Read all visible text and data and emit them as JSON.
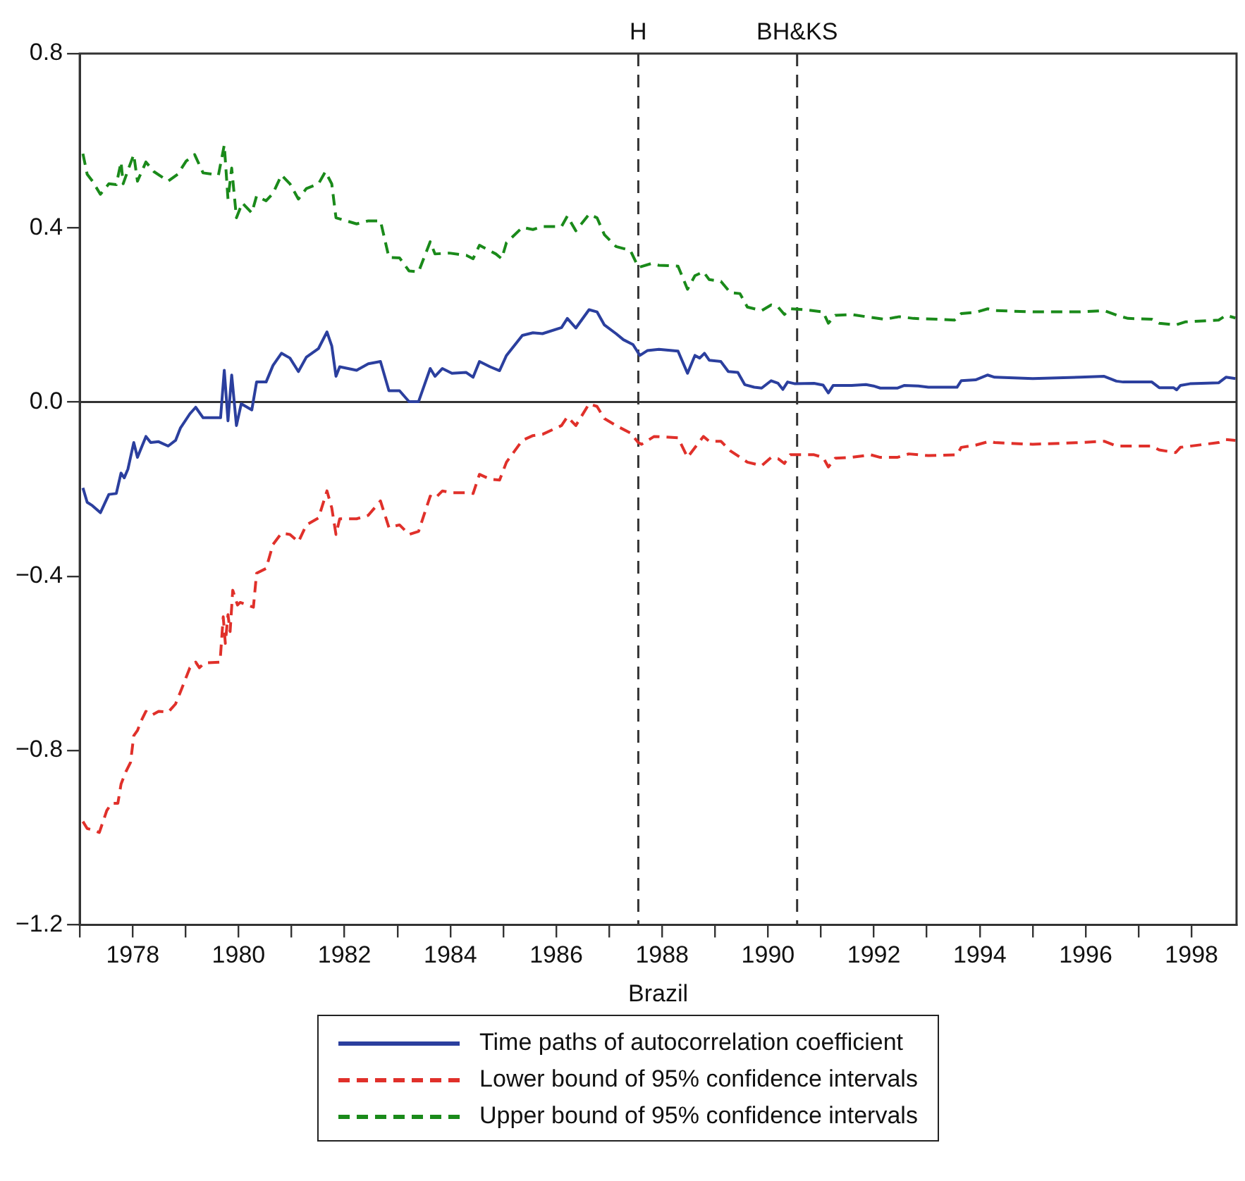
{
  "chart_data": {
    "type": "line",
    "xlabel": "Brazil",
    "xlim": [
      1977,
      1998.85
    ],
    "xticks": [
      {
        "value": 1977,
        "label": null
      },
      1978,
      {
        "value": 1979,
        "label": null
      },
      1980,
      {
        "value": 1981,
        "label": null
      },
      1982,
      {
        "value": 1983,
        "label": null
      },
      1984,
      {
        "value": 1985,
        "label": null
      },
      1986,
      {
        "value": 1987,
        "label": null
      },
      1988,
      {
        "value": 1989,
        "label": null
      },
      1990,
      {
        "value": 1991,
        "label": null
      },
      1992,
      {
        "value": 1993,
        "label": null
      },
      1994,
      {
        "value": 1995,
        "label": null
      },
      1996,
      {
        "value": 1997,
        "label": null
      },
      1998
    ],
    "ylim": [
      -1.2,
      0.8
    ],
    "yticks": [
      {
        "value": -1.2,
        "label": "−1.2"
      },
      {
        "value": -0.8,
        "label": "−0.8"
      },
      {
        "value": -0.4,
        "label": "−0.4"
      },
      {
        "value": 0,
        "label": "0.0"
      },
      {
        "value": 0.4,
        "label": "0.4"
      },
      {
        "value": 0.8,
        "label": "0.8"
      }
    ],
    "grid": false,
    "legend": "bottom",
    "marker": "none",
    "ref_lines": [
      {
        "axis": "y",
        "value": 0,
        "color": "#333333",
        "line_style": "solid"
      },
      {
        "axis": "x",
        "value": 1987.55,
        "label": "H",
        "color": "#333333",
        "line_style": "dashed"
      },
      {
        "axis": "x",
        "value": 1990.55,
        "label": "BH&KS",
        "color": "#333333",
        "line_style": "dashed"
      }
    ],
    "series": [
      {
        "name": "Time paths of autocorrelation coefficient",
        "color": "#2b3f9e",
        "line_style": "solid",
        "x": [
          1977.06,
          1977.14,
          1977.24,
          1977.39,
          1977.55,
          1977.69,
          1977.78,
          1977.84,
          1977.91,
          1978.02,
          1978.09,
          1978.25,
          1978.34,
          1978.49,
          1978.67,
          1978.81,
          1978.9,
          1979.08,
          1979.19,
          1979.33,
          1979.66,
          1979.73,
          1979.8,
          1979.87,
          1979.96,
          1980.05,
          1980.25,
          1980.34,
          1980.52,
          1980.65,
          1980.81,
          1980.97,
          1981.13,
          1981.28,
          1981.51,
          1981.67,
          1981.76,
          1981.84,
          1981.91,
          1982.23,
          1982.45,
          1982.68,
          1982.84,
          1983.04,
          1983.22,
          1983.4,
          1983.62,
          1983.71,
          1983.85,
          1984.03,
          1984.3,
          1984.43,
          1984.55,
          1984.75,
          1984.93,
          1985.06,
          1985.36,
          1985.56,
          1985.74,
          1986.1,
          1986.21,
          1986.37,
          1986.62,
          1986.77,
          1986.91,
          1987.13,
          1987.27,
          1987.45,
          1987.58,
          1987.72,
          1987.94,
          1988.3,
          1988.48,
          1988.62,
          1988.71,
          1988.8,
          1988.89,
          1989.11,
          1989.25,
          1989.43,
          1989.56,
          1989.74,
          1989.88,
          1990.06,
          1990.19,
          1990.28,
          1990.37,
          1990.51,
          1990.87,
          1991.04,
          1991.14,
          1991.23,
          1991.58,
          1991.85,
          1991.99,
          1992.12,
          1992.44,
          1992.57,
          1992.84,
          1993.03,
          1993.57,
          1993.65,
          1993.92,
          1994.15,
          1994.28,
          1995.0,
          1995.9,
          1996.35,
          1996.58,
          1996.71,
          1997.25,
          1997.39,
          1997.66,
          1997.72,
          1997.79,
          1997.97,
          1998.51,
          1998.65,
          1998.83
        ],
        "values": [
          -0.197,
          -0.23,
          -0.238,
          -0.254,
          -0.212,
          -0.21,
          -0.163,
          -0.174,
          -0.154,
          -0.093,
          -0.127,
          -0.079,
          -0.093,
          -0.091,
          -0.101,
          -0.088,
          -0.06,
          -0.027,
          -0.012,
          -0.036,
          -0.036,
          0.073,
          -0.043,
          0.062,
          -0.054,
          -0.004,
          -0.018,
          0.046,
          0.046,
          0.084,
          0.112,
          0.101,
          0.07,
          0.103,
          0.123,
          0.161,
          0.129,
          0.059,
          0.081,
          0.073,
          0.088,
          0.093,
          0.026,
          0.026,
          0.001,
          0.001,
          0.077,
          0.059,
          0.077,
          0.066,
          0.068,
          0.057,
          0.093,
          0.081,
          0.072,
          0.107,
          0.153,
          0.159,
          0.157,
          0.171,
          0.192,
          0.17,
          0.212,
          0.207,
          0.177,
          0.157,
          0.143,
          0.132,
          0.107,
          0.118,
          0.121,
          0.117,
          0.066,
          0.107,
          0.101,
          0.112,
          0.096,
          0.093,
          0.07,
          0.068,
          0.04,
          0.034,
          0.032,
          0.049,
          0.043,
          0.029,
          0.046,
          0.042,
          0.043,
          0.039,
          0.021,
          0.038,
          0.038,
          0.04,
          0.037,
          0.032,
          0.032,
          0.038,
          0.037,
          0.034,
          0.034,
          0.049,
          0.051,
          0.062,
          0.057,
          0.054,
          0.057,
          0.059,
          0.048,
          0.046,
          0.046,
          0.033,
          0.033,
          0.028,
          0.038,
          0.042,
          0.044,
          0.057,
          0.054
        ]
      },
      {
        "name": "Lower bound of 95% confidence intervals",
        "color": "#e0302a",
        "line_style": "dashed",
        "x": [
          1977.06,
          1977.14,
          1977.24,
          1977.37,
          1977.51,
          1977.6,
          1977.72,
          1977.78,
          1977.87,
          1977.96,
          1978.02,
          1978.09,
          1978.16,
          1978.25,
          1978.36,
          1978.49,
          1978.67,
          1978.81,
          1978.9,
          1979.08,
          1979.19,
          1979.26,
          1979.35,
          1979.65,
          1979.71,
          1979.75,
          1979.8,
          1979.84,
          1979.89,
          1979.98,
          1980.03,
          1980.28,
          1980.34,
          1980.52,
          1980.65,
          1980.81,
          1980.97,
          1981.13,
          1981.28,
          1981.51,
          1981.67,
          1981.76,
          1981.84,
          1981.91,
          1982.23,
          1982.45,
          1982.68,
          1982.84,
          1983.04,
          1983.22,
          1983.4,
          1983.62,
          1983.71,
          1983.85,
          1984.03,
          1984.3,
          1984.43,
          1984.55,
          1984.75,
          1984.93,
          1985.06,
          1985.36,
          1985.56,
          1985.74,
          1986.1,
          1986.21,
          1986.37,
          1986.62,
          1986.77,
          1986.91,
          1987.13,
          1987.4,
          1987.55,
          1987.61,
          1987.85,
          1988.3,
          1988.48,
          1988.78,
          1988.89,
          1989.11,
          1989.29,
          1989.61,
          1989.88,
          1990.06,
          1990.19,
          1990.31,
          1990.42,
          1990.87,
          1991.04,
          1991.14,
          1991.27,
          1991.58,
          1991.94,
          1992.12,
          1992.44,
          1992.66,
          1993.03,
          1993.57,
          1993.65,
          1993.92,
          1994.19,
          1994.28,
          1995.0,
          1995.9,
          1996.35,
          1996.58,
          1997.25,
          1997.39,
          1997.7,
          1997.79,
          1998.51,
          1998.65,
          1998.83
        ],
        "values": [
          -0.963,
          -0.979,
          -0.982,
          -0.988,
          -0.938,
          -0.921,
          -0.921,
          -0.877,
          -0.849,
          -0.827,
          -0.766,
          -0.754,
          -0.732,
          -0.71,
          -0.719,
          -0.71,
          -0.712,
          -0.693,
          -0.666,
          -0.61,
          -0.597,
          -0.61,
          -0.599,
          -0.597,
          -0.493,
          -0.554,
          -0.488,
          -0.527,
          -0.432,
          -0.466,
          -0.46,
          -0.471,
          -0.393,
          -0.382,
          -0.327,
          -0.301,
          -0.304,
          -0.321,
          -0.282,
          -0.266,
          -0.204,
          -0.243,
          -0.304,
          -0.268,
          -0.268,
          -0.26,
          -0.227,
          -0.288,
          -0.282,
          -0.304,
          -0.297,
          -0.216,
          -0.221,
          -0.204,
          -0.208,
          -0.208,
          -0.21,
          -0.166,
          -0.177,
          -0.179,
          -0.138,
          -0.088,
          -0.077,
          -0.074,
          -0.054,
          -0.034,
          -0.054,
          -0.004,
          -0.01,
          -0.038,
          -0.054,
          -0.071,
          -0.093,
          -0.097,
          -0.079,
          -0.082,
          -0.127,
          -0.079,
          -0.09,
          -0.09,
          -0.112,
          -0.138,
          -0.146,
          -0.127,
          -0.13,
          -0.141,
          -0.121,
          -0.121,
          -0.127,
          -0.149,
          -0.129,
          -0.127,
          -0.121,
          -0.127,
          -0.127,
          -0.119,
          -0.123,
          -0.121,
          -0.104,
          -0.099,
          -0.09,
          -0.093,
          -0.097,
          -0.093,
          -0.09,
          -0.101,
          -0.101,
          -0.11,
          -0.116,
          -0.104,
          -0.093,
          -0.086,
          -0.088
        ]
      },
      {
        "name": "Upper bound of 95% confidence intervals",
        "color": "#1a8a1a",
        "line_style": "dashed",
        "x": [
          1977.06,
          1977.14,
          1977.24,
          1977.39,
          1977.55,
          1977.69,
          1977.78,
          1977.82,
          1977.91,
          1978.02,
          1978.09,
          1978.25,
          1978.4,
          1978.67,
          1978.85,
          1979.01,
          1979.17,
          1979.33,
          1979.62,
          1979.73,
          1979.8,
          1979.87,
          1979.96,
          1980.07,
          1980.25,
          1980.34,
          1980.52,
          1980.65,
          1980.81,
          1980.97,
          1981.13,
          1981.28,
          1981.51,
          1981.64,
          1981.76,
          1981.84,
          1982.23,
          1982.45,
          1982.68,
          1982.84,
          1983.04,
          1983.22,
          1983.4,
          1983.62,
          1983.71,
          1983.98,
          1984.3,
          1984.43,
          1984.55,
          1984.86,
          1984.97,
          1985.06,
          1985.36,
          1985.56,
          1985.74,
          1986.1,
          1986.21,
          1986.37,
          1986.62,
          1986.77,
          1986.91,
          1987.13,
          1987.4,
          1987.55,
          1987.58,
          1987.8,
          1987.94,
          1988.3,
          1988.48,
          1988.62,
          1988.78,
          1988.89,
          1989.11,
          1989.29,
          1989.47,
          1989.61,
          1989.88,
          1990.06,
          1990.19,
          1990.31,
          1990.42,
          1990.69,
          1991.04,
          1991.14,
          1991.27,
          1991.58,
          1991.85,
          1992.21,
          1992.48,
          1992.75,
          1993.21,
          1993.52,
          1993.65,
          1993.92,
          1994.15,
          1994.28,
          1995.0,
          1995.9,
          1996.35,
          1996.62,
          1996.8,
          1997.25,
          1997.39,
          1997.7,
          1997.88,
          1998.51,
          1998.65,
          1998.83
        ],
        "values": [
          0.57,
          0.523,
          0.507,
          0.477,
          0.501,
          0.499,
          0.551,
          0.501,
          0.532,
          0.568,
          0.507,
          0.551,
          0.529,
          0.507,
          0.523,
          0.553,
          0.568,
          0.526,
          0.521,
          0.59,
          0.466,
          0.537,
          0.423,
          0.457,
          0.434,
          0.473,
          0.462,
          0.479,
          0.521,
          0.501,
          0.466,
          0.49,
          0.501,
          0.529,
          0.501,
          0.423,
          0.409,
          0.416,
          0.416,
          0.332,
          0.331,
          0.301,
          0.299,
          0.368,
          0.34,
          0.342,
          0.337,
          0.329,
          0.36,
          0.34,
          0.329,
          0.366,
          0.401,
          0.396,
          0.403,
          0.403,
          0.427,
          0.393,
          0.431,
          0.423,
          0.384,
          0.357,
          0.348,
          0.31,
          0.31,
          0.318,
          0.314,
          0.312,
          0.259,
          0.29,
          0.299,
          0.281,
          0.277,
          0.251,
          0.249,
          0.218,
          0.21,
          0.223,
          0.218,
          0.201,
          0.214,
          0.212,
          0.207,
          0.181,
          0.199,
          0.201,
          0.196,
          0.19,
          0.196,
          0.192,
          0.19,
          0.188,
          0.203,
          0.206,
          0.214,
          0.21,
          0.207,
          0.207,
          0.21,
          0.198,
          0.192,
          0.19,
          0.181,
          0.177,
          0.184,
          0.188,
          0.199,
          0.193
        ]
      }
    ]
  }
}
